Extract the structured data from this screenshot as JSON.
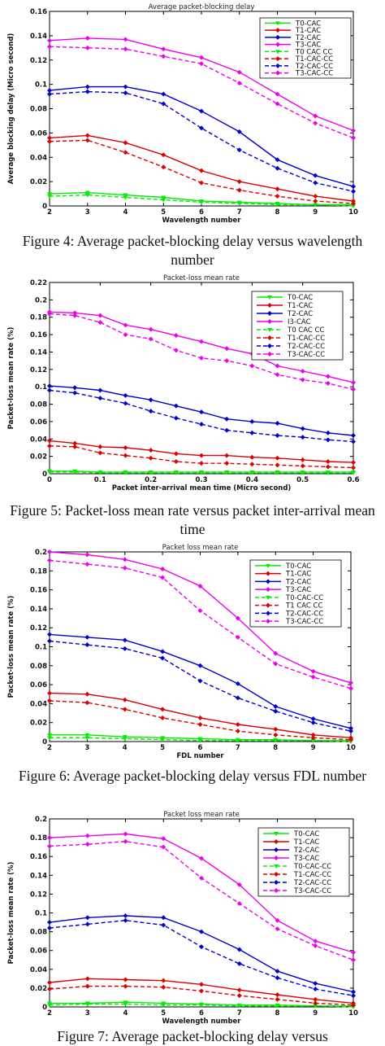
{
  "chart_data": [
    {
      "type": "line",
      "title": "Average packet-blocking delay",
      "xlabel": "Wavelength number",
      "ylabel": "Average blocking delay (Micro second)",
      "x": [
        2,
        3,
        4,
        5,
        6,
        7,
        8,
        9,
        10
      ],
      "xlim": [
        2,
        10
      ],
      "ylim": [
        0,
        0.16
      ],
      "xticks": [
        "2",
        "3",
        "4",
        "5",
        "6",
        "7",
        "8",
        "9",
        "10"
      ],
      "yticks": [
        "0",
        "0.02",
        "0.04",
        "0.06",
        "0.08",
        "0.1",
        "0.12",
        "0.14",
        "0.16"
      ],
      "legend_position": "top-right",
      "series": [
        {
          "name": "T0-CAC",
          "color": "#00ee00",
          "dashed": false,
          "values": [
            0.01,
            0.011,
            0.009,
            0.007,
            0.004,
            0.003,
            0.002,
            0.001,
            0.001
          ]
        },
        {
          "name": "T1-CAC",
          "color": "#dd0000",
          "dashed": false,
          "values": [
            0.056,
            0.058,
            0.052,
            0.042,
            0.029,
            0.02,
            0.014,
            0.008,
            0.004
          ]
        },
        {
          "name": "T2-CAC",
          "color": "#0000cc",
          "dashed": false,
          "values": [
            0.095,
            0.098,
            0.098,
            0.092,
            0.078,
            0.061,
            0.038,
            0.025,
            0.016
          ]
        },
        {
          "name": "T3-CAC",
          "color": "#ee00ee",
          "dashed": false,
          "values": [
            0.136,
            0.138,
            0.137,
            0.129,
            0.122,
            0.11,
            0.092,
            0.074,
            0.062
          ]
        },
        {
          "name": "T0 CAC CC",
          "color": "#00ee00",
          "dashed": true,
          "values": [
            0.008,
            0.009,
            0.007,
            0.005,
            0.003,
            0.002,
            0.001,
            0.001,
            0.0
          ]
        },
        {
          "name": "T1-CAC-CC",
          "color": "#dd0000",
          "dashed": true,
          "values": [
            0.053,
            0.054,
            0.044,
            0.032,
            0.019,
            0.013,
            0.008,
            0.004,
            0.002
          ]
        },
        {
          "name": "T2-CAC-CC",
          "color": "#0000cc",
          "dashed": true,
          "values": [
            0.092,
            0.094,
            0.093,
            0.084,
            0.064,
            0.046,
            0.031,
            0.019,
            0.012
          ]
        },
        {
          "name": "T3-CAC-CC",
          "color": "#ee00ee",
          "dashed": true,
          "values": [
            0.131,
            0.13,
            0.129,
            0.123,
            0.117,
            0.101,
            0.084,
            0.068,
            0.056
          ]
        }
      ]
    },
    {
      "type": "line",
      "title": "Packet-loss mean rate",
      "xlabel": "Packet inter-arrival mean time (Micro second)",
      "ylabel": "Packet-loss mean rate (%)",
      "x": [
        0,
        0.05,
        0.1,
        0.15,
        0.2,
        0.25,
        0.3,
        0.35,
        0.4,
        0.45,
        0.5,
        0.55,
        0.6
      ],
      "xlim": [
        0,
        0.6
      ],
      "ylim": [
        0,
        0.22
      ],
      "xticks": [
        "0",
        "0.1",
        "0.2",
        "0.3",
        "0.4",
        "0.5",
        "0.6"
      ],
      "yticks": [
        "0",
        "0.02",
        "0.04",
        "0.06",
        "0.08",
        "0.1",
        "0.12",
        "0.14",
        "0.16",
        "0.18",
        "0.2",
        "0.22"
      ],
      "legend_position": "top-right",
      "series": [
        {
          "name": "T0-CAC",
          "color": "#00ee00",
          "dashed": false,
          "values": [
            0.003,
            0.003,
            0.002,
            0.002,
            0.002,
            0.002,
            0.002,
            0.002,
            0.002,
            0.002,
            0.002,
            0.002,
            0.002
          ]
        },
        {
          "name": "T1-CAC",
          "color": "#dd0000",
          "dashed": false,
          "values": [
            0.038,
            0.035,
            0.031,
            0.03,
            0.027,
            0.023,
            0.021,
            0.021,
            0.019,
            0.018,
            0.016,
            0.014,
            0.013
          ]
        },
        {
          "name": "T2-CAC",
          "color": "#0000cc",
          "dashed": false,
          "values": [
            0.101,
            0.099,
            0.096,
            0.09,
            0.085,
            0.078,
            0.071,
            0.063,
            0.06,
            0.058,
            0.052,
            0.047,
            0.044
          ]
        },
        {
          "name": "I3-CAC",
          "color": "#ee00ee",
          "dashed": false,
          "values": [
            0.186,
            0.185,
            0.182,
            0.171,
            0.166,
            0.159,
            0.152,
            0.144,
            0.138,
            0.124,
            0.118,
            0.112,
            0.105
          ]
        },
        {
          "name": "T0 CAC CC",
          "color": "#00ee00",
          "dashed": true,
          "values": [
            0.002,
            0.002,
            0.001,
            0.001,
            0.001,
            0.001,
            0.001,
            0.001,
            0.001,
            0.001,
            0.001,
            0.001,
            0.001
          ]
        },
        {
          "name": "T1-CAC-CC",
          "color": "#dd0000",
          "dashed": true,
          "values": [
            0.032,
            0.031,
            0.024,
            0.021,
            0.018,
            0.014,
            0.012,
            0.012,
            0.011,
            0.01,
            0.009,
            0.008,
            0.007
          ]
        },
        {
          "name": "T2-CAC-CC",
          "color": "#0000cc",
          "dashed": true,
          "values": [
            0.096,
            0.093,
            0.087,
            0.081,
            0.072,
            0.064,
            0.057,
            0.05,
            0.047,
            0.044,
            0.042,
            0.039,
            0.037
          ]
        },
        {
          "name": "T3-CAC-CC",
          "color": "#ee00ee",
          "dashed": true,
          "values": [
            0.184,
            0.182,
            0.174,
            0.16,
            0.155,
            0.142,
            0.133,
            0.13,
            0.124,
            0.114,
            0.108,
            0.104,
            0.097
          ]
        }
      ]
    },
    {
      "type": "line",
      "title": "Packet loss mean rate",
      "xlabel": "FDL number",
      "ylabel": "Packet-loss mean rate (%)",
      "x": [
        2,
        3,
        4,
        5,
        6,
        7,
        8,
        9,
        10
      ],
      "xlim": [
        2,
        10
      ],
      "ylim": [
        0,
        0.2
      ],
      "xticks": [
        "2",
        "3",
        "4",
        "5",
        "6",
        "7",
        "8",
        "9",
        "10"
      ],
      "yticks": [
        "0",
        "0.02",
        "0.04",
        "0.06",
        "0.08",
        "0.1",
        "0.12",
        "0.14",
        "0.16",
        "0.18",
        "0.2"
      ],
      "legend_position": "top-right",
      "series": [
        {
          "name": "T0-CAC",
          "color": "#00ee00",
          "dashed": false,
          "values": [
            0.007,
            0.007,
            0.005,
            0.004,
            0.003,
            0.002,
            0.002,
            0.001,
            0.001
          ]
        },
        {
          "name": "T1-CAC",
          "color": "#dd0000",
          "dashed": false,
          "values": [
            0.051,
            0.05,
            0.044,
            0.034,
            0.025,
            0.018,
            0.013,
            0.007,
            0.004
          ]
        },
        {
          "name": "T2-CAC",
          "color": "#0000cc",
          "dashed": false,
          "values": [
            0.113,
            0.11,
            0.107,
            0.095,
            0.08,
            0.061,
            0.037,
            0.024,
            0.014
          ]
        },
        {
          "name": "T3-CAC",
          "color": "#ee00ee",
          "dashed": false,
          "values": [
            0.2,
            0.197,
            0.192,
            0.182,
            0.164,
            0.13,
            0.093,
            0.074,
            0.062
          ]
        },
        {
          "name": "T0-CAC-CC",
          "color": "#00ee00",
          "dashed": true,
          "values": [
            0.004,
            0.004,
            0.003,
            0.002,
            0.001,
            0.001,
            0.001,
            0.001,
            0.0
          ]
        },
        {
          "name": "T1 CAC CC",
          "color": "#dd0000",
          "dashed": true,
          "values": [
            0.043,
            0.041,
            0.034,
            0.025,
            0.018,
            0.011,
            0.007,
            0.004,
            0.002
          ]
        },
        {
          "name": "T2-CAC-CC",
          "color": "#0000cc",
          "dashed": true,
          "values": [
            0.106,
            0.102,
            0.098,
            0.088,
            0.064,
            0.046,
            0.032,
            0.02,
            0.011
          ]
        },
        {
          "name": "T3-CAC-CC",
          "color": "#ee00ee",
          "dashed": true,
          "values": [
            0.191,
            0.187,
            0.183,
            0.173,
            0.138,
            0.11,
            0.082,
            0.068,
            0.056
          ]
        }
      ]
    },
    {
      "type": "line",
      "title": "Packet loss mean rate",
      "xlabel": "Wavelength number",
      "ylabel": "Packet-loss mean rate (%)",
      "x": [
        2,
        3,
        4,
        5,
        6,
        7,
        8,
        9,
        10
      ],
      "xlim": [
        2,
        10
      ],
      "ylim": [
        0,
        0.2
      ],
      "xticks": [
        "2",
        "3",
        "4",
        "5",
        "6",
        "7",
        "8",
        "9",
        "10"
      ],
      "yticks": [
        "0",
        "0.02",
        "0.04",
        "0.06",
        "0.08",
        "0.1",
        "0.12",
        "0.14",
        "0.16",
        "0.18",
        "0.2"
      ],
      "legend_position": "top-right",
      "series": [
        {
          "name": "T0-CAC",
          "color": "#00ee00",
          "dashed": false,
          "values": [
            0.004,
            0.004,
            0.005,
            0.004,
            0.003,
            0.002,
            0.002,
            0.001,
            0.001
          ]
        },
        {
          "name": "T1-CAC",
          "color": "#dd0000",
          "dashed": false,
          "values": [
            0.026,
            0.03,
            0.029,
            0.028,
            0.024,
            0.018,
            0.013,
            0.008,
            0.004
          ]
        },
        {
          "name": "T2-CAC",
          "color": "#0000cc",
          "dashed": false,
          "values": [
            0.09,
            0.095,
            0.097,
            0.095,
            0.08,
            0.061,
            0.038,
            0.025,
            0.016
          ]
        },
        {
          "name": "T3-CAC",
          "color": "#ee00ee",
          "dashed": false,
          "values": [
            0.18,
            0.182,
            0.184,
            0.179,
            0.158,
            0.13,
            0.092,
            0.07,
            0.058
          ]
        },
        {
          "name": "T0-CAC-CC",
          "color": "#00ee00",
          "dashed": true,
          "values": [
            0.002,
            0.003,
            0.003,
            0.002,
            0.002,
            0.001,
            0.001,
            0.001,
            0.0
          ]
        },
        {
          "name": "T1-CAC-CC",
          "color": "#dd0000",
          "dashed": true,
          "values": [
            0.019,
            0.022,
            0.022,
            0.021,
            0.017,
            0.012,
            0.008,
            0.004,
            0.002
          ]
        },
        {
          "name": "T2-CAC-CC",
          "color": "#0000cc",
          "dashed": true,
          "values": [
            0.084,
            0.088,
            0.092,
            0.087,
            0.064,
            0.046,
            0.031,
            0.019,
            0.012
          ]
        },
        {
          "name": "T3-CAC-CC",
          "color": "#ee00ee",
          "dashed": true,
          "values": [
            0.171,
            0.173,
            0.176,
            0.17,
            0.137,
            0.11,
            0.083,
            0.065,
            0.05
          ]
        }
      ]
    }
  ],
  "captions": [
    "Figure 4: Average packet-blocking delay versus wavelength number",
    "Figure 5: Packet-loss mean rate versus packet inter-arrival mean time",
    "Figure 6: Average packet-blocking delay versus FDL number",
    "Figure 7: Average packet-blocking delay versus"
  ]
}
